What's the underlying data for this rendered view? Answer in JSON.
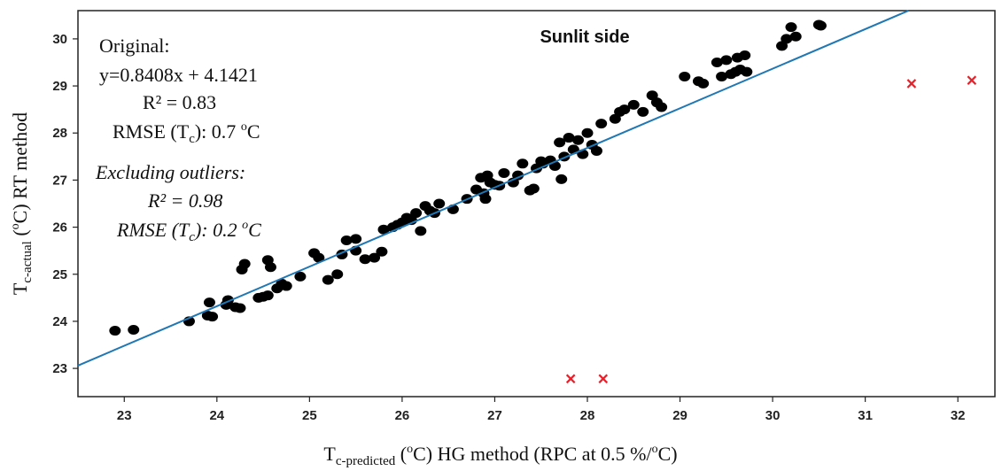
{
  "chart_data": {
    "type": "scatter",
    "title": "Sunlit side",
    "xlabel": {
      "main": "T",
      "sub": "c-predicted",
      "rest_open": " (",
      "deg": "o",
      "rest_close": "C)  HG method (RPC at 0.5 %/",
      "deg2": "o",
      "tail": "C)"
    },
    "ylabel": {
      "main": "T",
      "sub": "c-actual",
      "rest_open": " (",
      "deg": "o",
      "rest_close": "C)  RT method"
    },
    "xlim": [
      22.5,
      32.4
    ],
    "ylim": [
      22.4,
      30.6
    ],
    "xticks": [
      "23",
      "24",
      "25",
      "26",
      "27",
      "28",
      "29",
      "30",
      "31",
      "32"
    ],
    "yticks": [
      "23",
      "24",
      "25",
      "26",
      "27",
      "28",
      "29",
      "30"
    ],
    "annotations": {
      "original_title": "Original:",
      "equation": "y=0.8408x + 4.1421",
      "r2": "R² = 0.83",
      "rmse_pre": "RMSE (T",
      "rmse_sub": "c",
      "rmse_mid": "): 0.7 ",
      "rmse_deg": "o",
      "rmse_unit": "C",
      "excl_title": "Excluding outliers:",
      "excl_r2": "R² = 0.98",
      "excl_rmse_pre": "RMSE (T",
      "excl_rmse_sub": "c",
      "excl_rmse_mid": "): 0.2 ",
      "excl_rmse_deg": "o",
      "excl_rmse_unit": "C"
    },
    "fit_line": {
      "slope": 0.8408,
      "intercept": 4.1421,
      "color": "#1f77b4"
    },
    "point_color": "#000000",
    "outlier_color": "#e8202a",
    "points": [
      [
        22.9,
        23.8
      ],
      [
        23.1,
        23.82
      ],
      [
        23.7,
        24.0
      ],
      [
        23.9,
        24.12
      ],
      [
        23.92,
        24.4
      ],
      [
        23.95,
        24.1
      ],
      [
        24.1,
        24.35
      ],
      [
        24.12,
        24.45
      ],
      [
        24.2,
        24.3
      ],
      [
        24.25,
        24.28
      ],
      [
        24.27,
        25.1
      ],
      [
        24.3,
        25.22
      ],
      [
        24.45,
        24.5
      ],
      [
        24.5,
        24.52
      ],
      [
        24.55,
        24.55
      ],
      [
        24.55,
        25.3
      ],
      [
        24.58,
        25.15
      ],
      [
        24.65,
        24.7
      ],
      [
        24.7,
        24.8
      ],
      [
        24.75,
        24.75
      ],
      [
        24.9,
        24.95
      ],
      [
        25.05,
        25.45
      ],
      [
        25.1,
        25.35
      ],
      [
        25.2,
        24.88
      ],
      [
        25.3,
        25.0
      ],
      [
        25.35,
        25.42
      ],
      [
        25.4,
        25.72
      ],
      [
        25.5,
        25.75
      ],
      [
        25.5,
        25.5
      ],
      [
        25.6,
        25.32
      ],
      [
        25.7,
        25.35
      ],
      [
        25.78,
        25.48
      ],
      [
        25.8,
        25.95
      ],
      [
        25.9,
        26.0
      ],
      [
        25.95,
        26.05
      ],
      [
        26.0,
        26.1
      ],
      [
        26.05,
        26.2
      ],
      [
        26.1,
        26.15
      ],
      [
        26.15,
        26.3
      ],
      [
        26.2,
        25.92
      ],
      [
        26.25,
        26.45
      ],
      [
        26.3,
        26.35
      ],
      [
        26.35,
        26.3
      ],
      [
        26.4,
        26.5
      ],
      [
        26.55,
        26.38
      ],
      [
        26.7,
        26.6
      ],
      [
        26.8,
        26.8
      ],
      [
        26.85,
        27.05
      ],
      [
        26.88,
        26.72
      ],
      [
        26.9,
        26.6
      ],
      [
        26.92,
        27.1
      ],
      [
        26.95,
        26.95
      ],
      [
        27.0,
        26.9
      ],
      [
        27.05,
        26.88
      ],
      [
        27.1,
        27.15
      ],
      [
        27.2,
        26.95
      ],
      [
        27.25,
        27.1
      ],
      [
        27.3,
        27.35
      ],
      [
        27.38,
        26.78
      ],
      [
        27.42,
        26.82
      ],
      [
        27.45,
        27.25
      ],
      [
        27.5,
        27.4
      ],
      [
        27.52,
        27.35
      ],
      [
        27.6,
        27.42
      ],
      [
        27.65,
        27.3
      ],
      [
        27.7,
        27.8
      ],
      [
        27.72,
        27.02
      ],
      [
        27.75,
        27.5
      ],
      [
        27.8,
        27.9
      ],
      [
        27.85,
        27.65
      ],
      [
        27.9,
        27.85
      ],
      [
        27.95,
        27.55
      ],
      [
        28.0,
        28.0
      ],
      [
        28.05,
        27.75
      ],
      [
        28.1,
        27.62
      ],
      [
        28.15,
        28.2
      ],
      [
        28.3,
        28.3
      ],
      [
        28.35,
        28.45
      ],
      [
        28.4,
        28.5
      ],
      [
        28.5,
        28.6
      ],
      [
        28.6,
        28.45
      ],
      [
        28.7,
        28.8
      ],
      [
        28.75,
        28.65
      ],
      [
        28.8,
        28.55
      ],
      [
        29.05,
        29.2
      ],
      [
        29.2,
        29.1
      ],
      [
        29.25,
        29.05
      ],
      [
        29.4,
        29.5
      ],
      [
        29.45,
        29.2
      ],
      [
        29.5,
        29.55
      ],
      [
        29.55,
        29.25
      ],
      [
        29.6,
        29.3
      ],
      [
        29.62,
        29.6
      ],
      [
        29.65,
        29.35
      ],
      [
        29.7,
        29.65
      ],
      [
        29.72,
        29.3
      ],
      [
        30.1,
        29.85
      ],
      [
        30.15,
        30.0
      ],
      [
        30.2,
        30.25
      ],
      [
        30.25,
        30.05
      ],
      [
        30.5,
        30.3
      ],
      [
        30.52,
        30.28
      ]
    ],
    "outliers": [
      [
        27.82,
        22.78
      ],
      [
        28.17,
        22.78
      ],
      [
        31.5,
        29.05
      ],
      [
        32.15,
        29.12
      ]
    ]
  }
}
